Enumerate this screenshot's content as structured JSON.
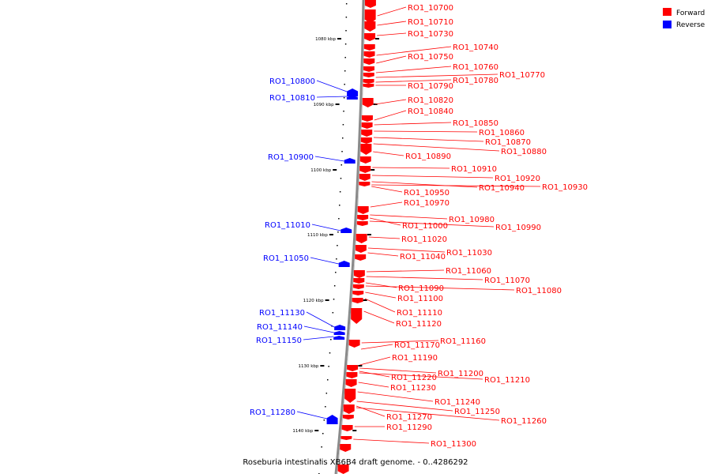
{
  "title": "Roseburia intestinalis XB6B4 draft genome. - 0..4286292",
  "colors": {
    "forward": "#ff0000",
    "reverse": "#0000ff",
    "backbone": "#808080"
  },
  "legend": [
    {
      "label": "Forward",
      "color": "#ff0000"
    },
    {
      "label": "Reverse",
      "color": "#0000ff"
    }
  ],
  "axis_ticks": [
    "1080 kbp",
    "1090 kbp",
    "1100 kbp",
    "1110 kbp",
    "1120 kbp",
    "1130 kbp",
    "1140 kbp"
  ],
  "forward_labels": [
    "RO1_10700",
    "RO1_10710",
    "RO1_10730",
    "RO1_10740",
    "RO1_10750",
    "RO1_10760",
    "RO1_10770",
    "RO1_10780",
    "RO1_10790",
    "RO1_10820",
    "RO1_10840",
    "RO1_10850",
    "RO1_10860",
    "RO1_10870",
    "RO1_10880",
    "RO1_10890",
    "RO1_10910",
    "RO1_10920",
    "RO1_10940",
    "RO1_10930",
    "RO1_10950",
    "RO1_10970",
    "RO1_10980",
    "RO1_11000",
    "RO1_10990",
    "RO1_11020",
    "RO1_11030",
    "RO1_11040",
    "RO1_11060",
    "RO1_11070",
    "RO1_11090",
    "RO1_11080",
    "RO1_11100",
    "RO1_11110",
    "RO1_11120",
    "RO1_11160",
    "RO1_11170",
    "RO1_11190",
    "RO1_11200",
    "RO1_11220",
    "RO1_11210",
    "RO1_11230",
    "RO1_11240",
    "RO1_11250",
    "RO1_11270",
    "RO1_11260",
    "RO1_11290",
    "RO1_11300"
  ],
  "reverse_labels": [
    "RO1_10800",
    "RO1_10810",
    "RO1_10900",
    "RO1_11010",
    "RO1_11050",
    "RO1_11130",
    "RO1_11140",
    "RO1_11150",
    "RO1_11280"
  ]
}
